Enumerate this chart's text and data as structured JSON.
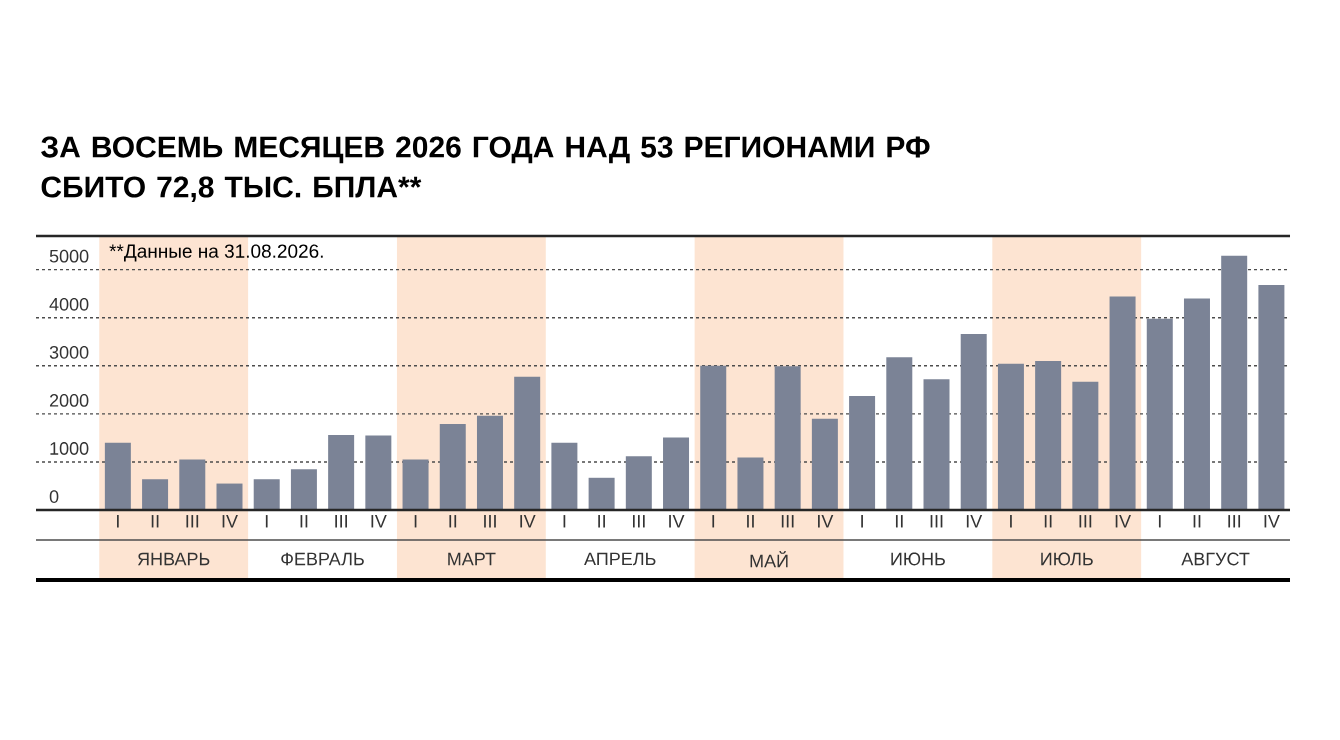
{
  "chart_data": {
    "type": "bar",
    "title": "ЗА ВОСЕМЬ МЕСЯЦЕВ 2026 ГОДА НАД 53 РЕГИОНАМИ РФ СБИТО 72,8 ТЫС. БПЛА**",
    "annotations": [
      "**Данные на 31.08.2026.",
      "ЯНВАРЬ",
      "ФЕВРАЛЬ",
      "МАРТ",
      "АПРЕЛЬ",
      "МАЙ",
      "ИЮНЬ",
      "ИЮЛЬ",
      "АВГУСТ"
    ],
    "categories": [
      "I",
      "II",
      "III",
      "IV",
      "I",
      "II",
      "III",
      "IV",
      "I",
      "II",
      "III",
      "IV",
      "I",
      "II",
      "III",
      "IV",
      "I",
      "II",
      "III",
      "IV",
      "I",
      "II",
      "III",
      "IV",
      "I",
      "II",
      "III",
      "IV",
      "I",
      "II",
      "III",
      "IV"
    ],
    "values": [
      1400,
      640,
      1050,
      550,
      640,
      850,
      1560,
      1550,
      1050,
      1790,
      1960,
      2770,
      1400,
      670,
      1120,
      1510,
      3000,
      1090,
      2990,
      1900,
      2370,
      3180,
      2720,
      3660,
      3040,
      3100,
      2670,
      4440,
      3980,
      4400,
      5290,
      4680
    ],
    "color": "#7b8396",
    "ylim": [
      0,
      5700
    ],
    "yticks": [
      0,
      1000,
      2000,
      3000,
      4000,
      5000
    ],
    "grid": "y"
  }
}
